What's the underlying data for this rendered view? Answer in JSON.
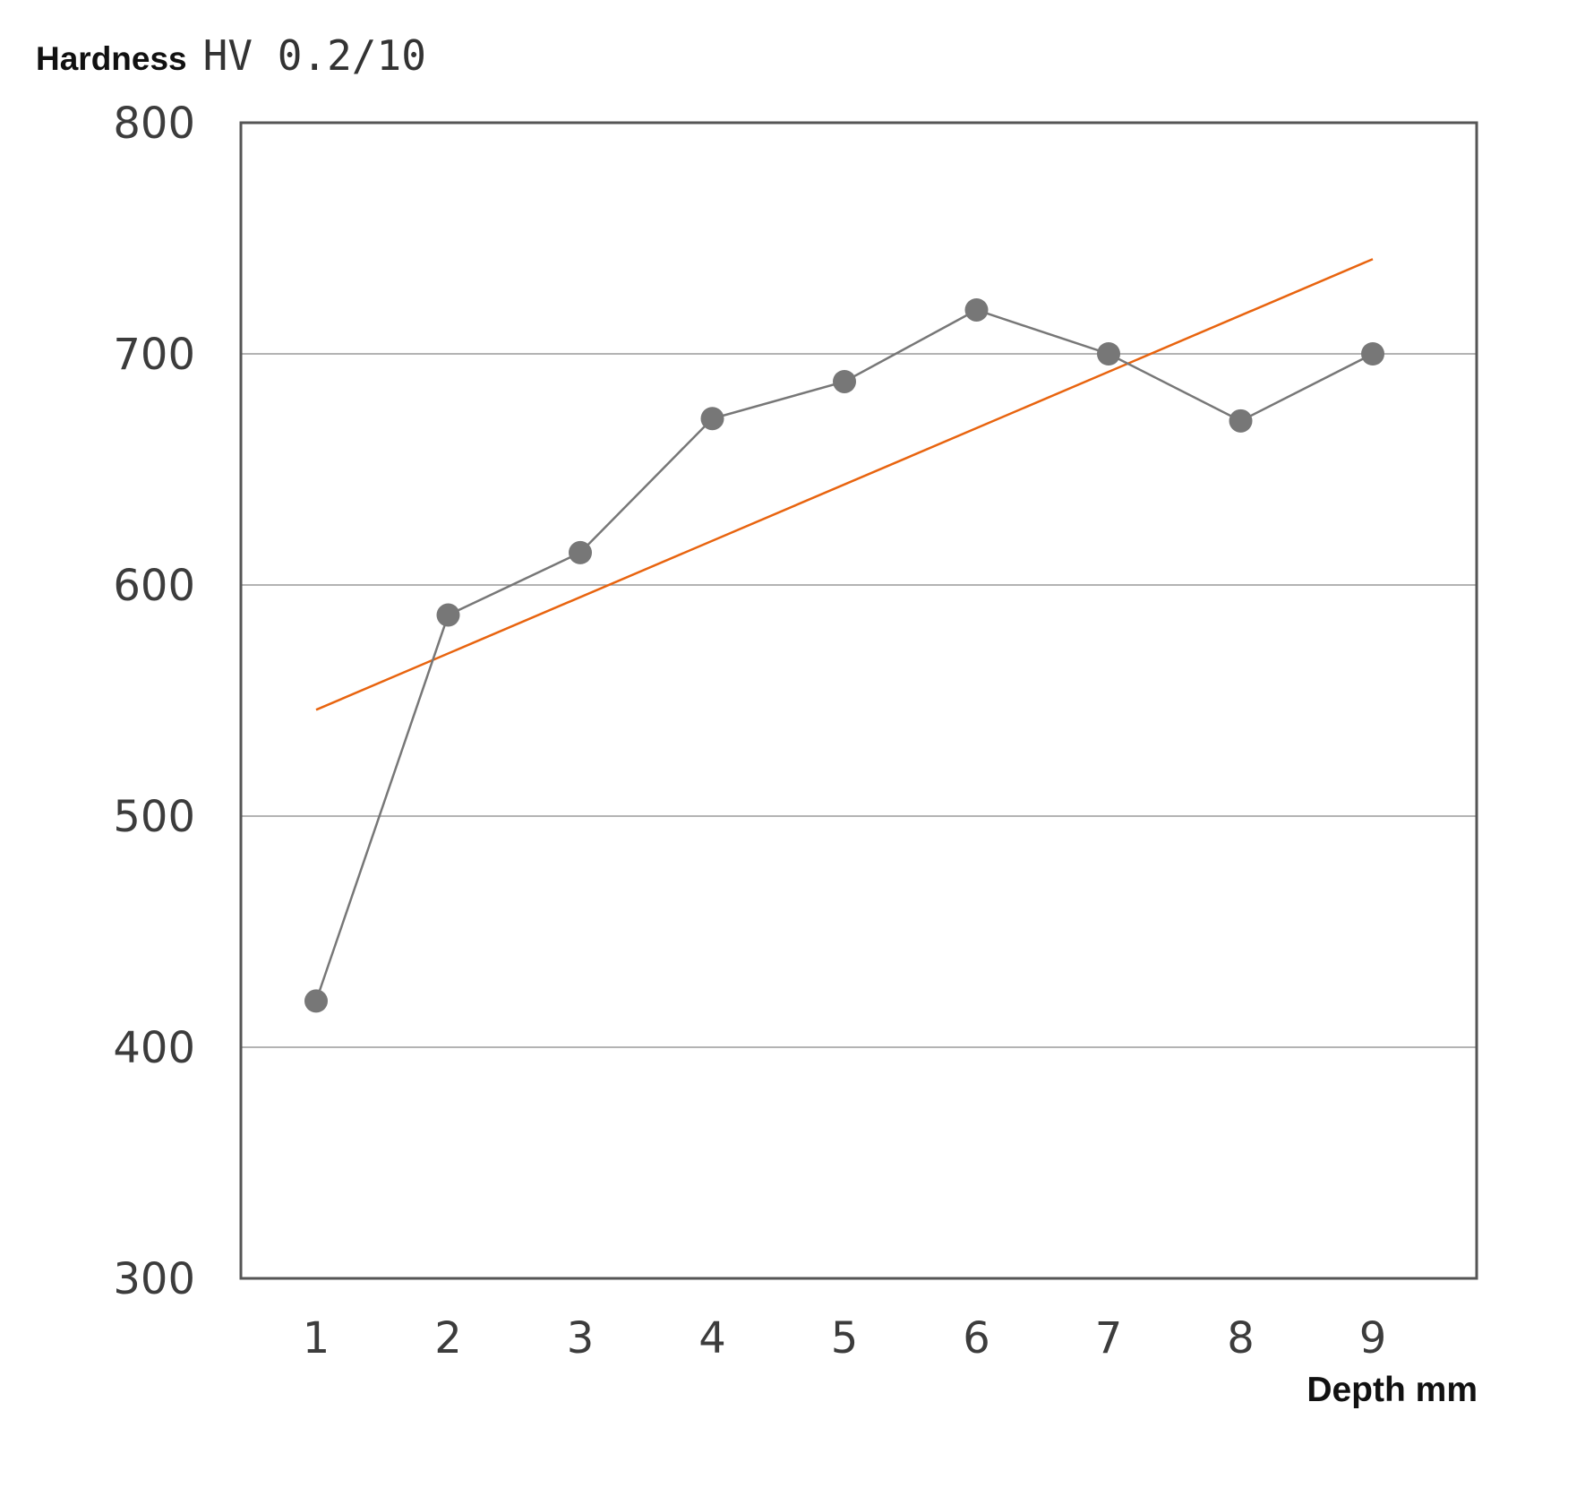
{
  "chart_data": {
    "type": "line",
    "ylabel": "Hardness",
    "ylabel_unit": "HV 0.2/10",
    "xlabel": "Depth mm",
    "categories": [
      "1",
      "2",
      "3",
      "4",
      "5",
      "6",
      "7",
      "8",
      "9"
    ],
    "x": [
      1,
      2,
      3,
      4,
      5,
      6,
      7,
      8,
      9
    ],
    "ylim": [
      300,
      800
    ],
    "yticks": [
      "300",
      "400",
      "500",
      "600",
      "700",
      "800"
    ],
    "grid": true,
    "series": [
      {
        "values": [
          420,
          587,
          614,
          672,
          688,
          719,
          700,
          671,
          700
        ],
        "color": "#777777",
        "marker": "circle"
      }
    ],
    "trendline": {
      "color": "#e8640f",
      "start": [
        1,
        546
      ],
      "end": [
        9,
        741
      ]
    }
  }
}
